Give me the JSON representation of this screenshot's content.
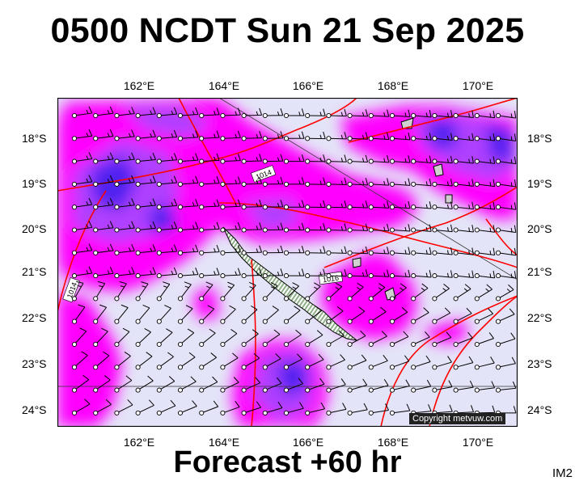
{
  "title": "0500 NCDT Sun 21 Sep 2025",
  "footer": "Forecast +60 hr",
  "badge": "IM2",
  "copyright": "Copyright metvuw.com",
  "lon_labels": [
    "162°E",
    "164°E",
    "166°E",
    "168°E",
    "170°E"
  ],
  "lat_labels": [
    "18°S",
    "19°S",
    "20°S",
    "21°S",
    "22°S",
    "23°S",
    "24°S"
  ],
  "isobar_labels": [
    "1014",
    "1016",
    "1014"
  ],
  "colors": {
    "background": "#e4e4f8",
    "wind_low": "#ff00ff",
    "wind_mid": "#c040ff",
    "wind_high": "#6020f0",
    "isobar": "#ff0000",
    "land": "#98b890"
  }
}
